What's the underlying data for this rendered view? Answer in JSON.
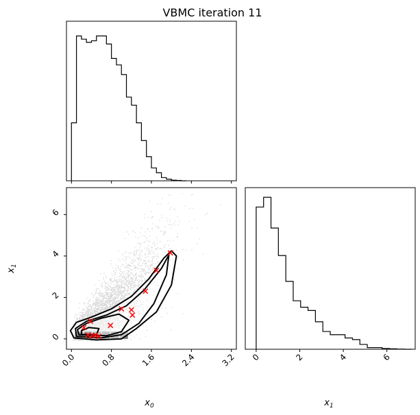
{
  "title": "VBMC iteration 11",
  "chart_data": [
    {
      "panel": "x0 marginal",
      "type": "histogram",
      "variable": "x_0",
      "xlim": [
        -0.1,
        3.3
      ],
      "bins": {
        "start": 0.0,
        "width": 0.1,
        "heights": [
          0.36,
          0.9,
          0.88,
          0.86,
          0.87,
          0.9,
          0.9,
          0.85,
          0.76,
          0.72,
          0.66,
          0.52,
          0.47,
          0.36,
          0.25,
          0.15,
          0.08,
          0.05,
          0.02,
          0.01,
          0.004,
          0.002,
          0.0
        ]
      }
    },
    {
      "panel": "x0 vs x1 joint",
      "type": "scatter",
      "xlabel": "x_0",
      "ylabel": "x_1",
      "xlim": [
        -0.1,
        3.3
      ],
      "ylim": [
        -0.5,
        7.3
      ],
      "xticks": [
        "0.0",
        "0.8",
        "1.6",
        "2.4",
        "3.2"
      ],
      "yticks": [
        "0",
        "2",
        "4",
        "6"
      ],
      "training_points": [
        {
          "x": 0.25,
          "y": 0.55
        },
        {
          "x": 0.38,
          "y": 0.85
        },
        {
          "x": 0.33,
          "y": 0.18
        },
        {
          "x": 0.42,
          "y": 0.15
        },
        {
          "x": 0.48,
          "y": 0.18
        },
        {
          "x": 0.55,
          "y": 0.12
        },
        {
          "x": 0.78,
          "y": 0.65
        },
        {
          "x": 1.0,
          "y": 1.45
        },
        {
          "x": 1.2,
          "y": 1.4
        },
        {
          "x": 1.22,
          "y": 1.15
        },
        {
          "x": 1.48,
          "y": 2.3
        },
        {
          "x": 1.7,
          "y": 3.3
        },
        {
          "x": 1.98,
          "y": 4.15
        }
      ],
      "marker_color": "#ff0000"
    },
    {
      "panel": "x1 marginal",
      "type": "histogram",
      "variable": "x_1",
      "xlim": [
        -0.5,
        7.3
      ],
      "xticks": [
        "0",
        "2",
        "4",
        "6"
      ],
      "bins": {
        "start": 0.0,
        "width": 0.34,
        "heights": [
          0.88,
          0.94,
          0.75,
          0.58,
          0.42,
          0.3,
          0.26,
          0.24,
          0.17,
          0.11,
          0.09,
          0.09,
          0.07,
          0.06,
          0.03,
          0.01,
          0.01,
          0.005,
          0.003,
          0.001,
          0.0
        ]
      }
    }
  ],
  "colors": {
    "axes": "#000000",
    "markers": "#ff0000",
    "samples": "#000000"
  }
}
